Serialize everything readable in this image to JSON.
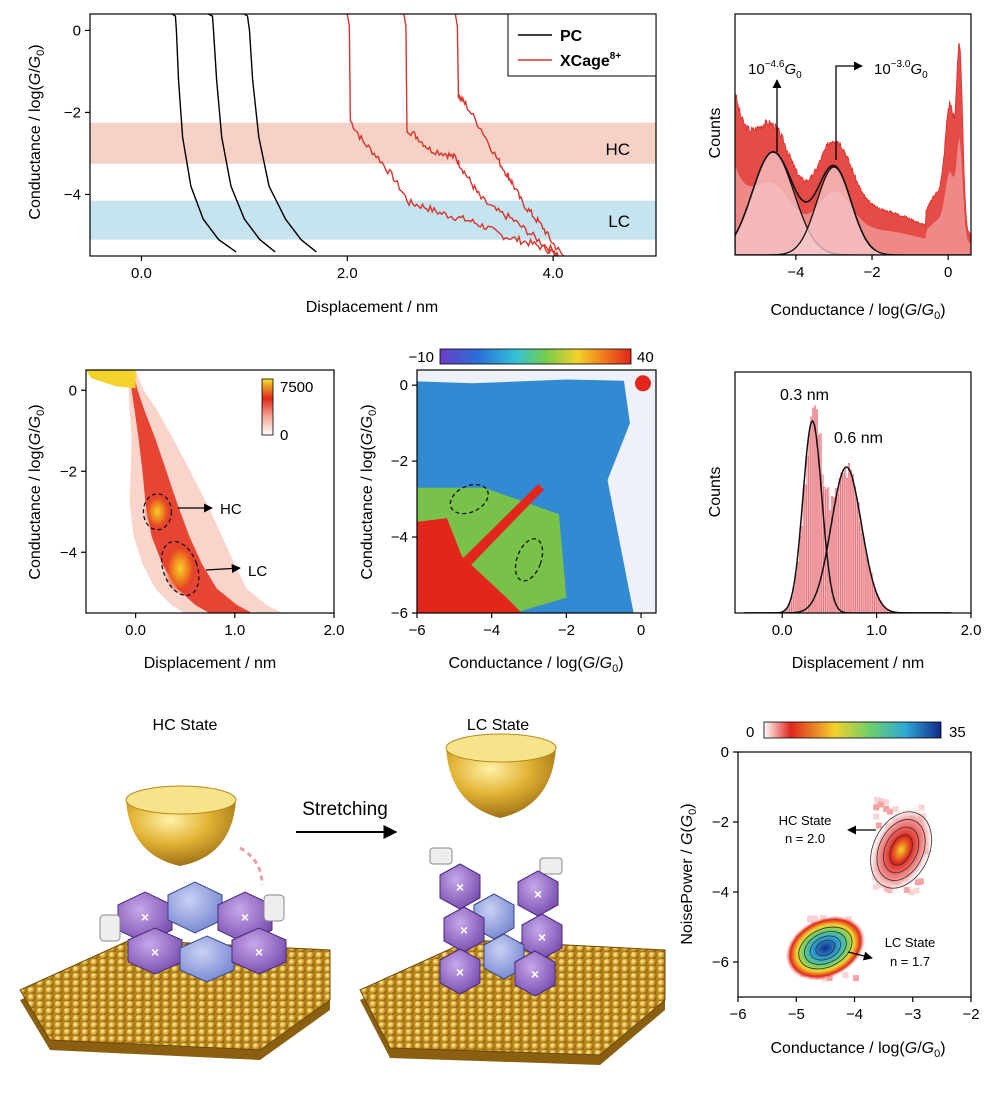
{
  "panel_traces": {
    "xlabel": "Displacement / nm",
    "ylabel_main": "Conductance / log(",
    "ylabel_g": "G",
    "ylabel_slash": "/",
    "ylabel_g0": "G",
    "ylabel_sub": "0",
    "ylabel_close": ")",
    "band_hc_label": "HC",
    "band_lc_label": "LC",
    "legend_pc": "PC",
    "legend_xcage": "XCage",
    "legend_xcage_sup": "8+"
  },
  "panel_hist1": {
    "ylabel": "Counts",
    "xlabel": "Conductance / log(G/G0)",
    "peak1_label_base": "10",
    "peak1_label_exp": "−4.6",
    "peak2_label_base": "10",
    "peak2_label_exp": "−3.0",
    "peak_label_unit": "G",
    "peak_label_sub": "0"
  },
  "panel_2d": {
    "xlabel": "Displacement / nm",
    "colorbar_max": "7500",
    "colorbar_min": "0",
    "hc_label": "HC",
    "lc_label": "LC"
  },
  "panel_corr": {
    "xlabel": "Conductance / log(G/G0)",
    "colorbar_min": "−10",
    "colorbar_max": "40"
  },
  "panel_hist2": {
    "ylabel": "Counts",
    "xlabel": "Displacement / nm",
    "peak1_label": "0.3 nm",
    "peak2_label": "0.6 nm"
  },
  "schematic": {
    "hc_title": "HC State",
    "lc_title": "LC State",
    "arrow_label": "Stretching"
  },
  "panel_noise": {
    "ylabel": "NoisePower / G(G0)",
    "xlabel": "Conductance / log(G/G0)",
    "colorbar_min": "0",
    "colorbar_max": "35",
    "hc_label": "HC State",
    "hc_n": "n = 2.0",
    "lc_label": "LC State",
    "lc_n": "n = 1.7"
  },
  "chart_data": [
    {
      "type": "line",
      "xlabel": "Displacement / nm",
      "ylabel": "Conductance / log(G/G0)",
      "xlim": [
        -0.5,
        5.0
      ],
      "ylim": [
        -5.5,
        0.4
      ],
      "xticks": [
        0.0,
        2.0,
        4.0
      ],
      "yticks": [
        0,
        -2,
        -4
      ],
      "bands": [
        {
          "name": "HC",
          "y": [
            -3.25,
            -2.25
          ],
          "color": "#f6d2c6"
        },
        {
          "name": "LC",
          "y": [
            -5.1,
            -4.15
          ],
          "color": "#c6e3f0"
        }
      ],
      "series": [
        {
          "name": "PC",
          "color": "#000000",
          "traces": [
            {
              "x": [
                0.3,
                0.33,
                0.34,
                0.36,
                0.4,
                0.48,
                0.6,
                0.75,
                0.92
              ],
              "y": [
                0.4,
                0.35,
                0.0,
                -1.2,
                -2.6,
                -3.8,
                -4.6,
                -5.1,
                -5.4
              ]
            },
            {
              "x": [
                0.65,
                0.69,
                0.7,
                0.73,
                0.78,
                0.87,
                1.0,
                1.15,
                1.3
              ],
              "y": [
                0.4,
                0.35,
                0.0,
                -1.2,
                -2.6,
                -3.8,
                -4.6,
                -5.1,
                -5.4
              ]
            },
            {
              "x": [
                1.0,
                1.03,
                1.05,
                1.08,
                1.14,
                1.24,
                1.4,
                1.55,
                1.7
              ],
              "y": [
                0.4,
                0.35,
                0.0,
                -1.2,
                -2.6,
                -3.8,
                -4.6,
                -5.1,
                -5.4
              ]
            }
          ]
        },
        {
          "name": "XCage8+",
          "color": "#d8342b",
          "traces": [
            {
              "x": [
                2.0,
                2.02,
                2.03,
                2.15,
                2.3,
                2.45,
                2.6,
                2.75,
                2.9,
                3.05,
                3.2,
                3.35,
                3.5,
                3.65,
                3.8,
                3.95,
                4.05
              ],
              "y": [
                0.4,
                0.1,
                -2.2,
                -2.7,
                -3.1,
                -3.6,
                -4.2,
                -4.3,
                -4.45,
                -4.55,
                -4.65,
                -4.8,
                -5.0,
                -5.1,
                -5.2,
                -5.35,
                -5.5
              ]
            },
            {
              "x": [
                2.55,
                2.57,
                2.58,
                2.68,
                2.8,
                2.95,
                3.05,
                3.1,
                3.2,
                3.3,
                3.45,
                3.6,
                3.75,
                3.9,
                4.05
              ],
              "y": [
                0.4,
                0.1,
                -2.4,
                -2.6,
                -2.9,
                -3.0,
                -3.1,
                -3.3,
                -3.7,
                -4.1,
                -4.4,
                -4.6,
                -4.9,
                -5.2,
                -5.45
              ]
            },
            {
              "x": [
                3.05,
                3.07,
                3.08,
                3.15,
                3.3,
                3.45,
                3.55,
                3.6,
                3.7,
                3.8,
                3.9,
                4.0,
                4.1
              ],
              "y": [
                0.4,
                0.1,
                -1.6,
                -1.8,
                -2.4,
                -3.1,
                -3.5,
                -3.7,
                -4.2,
                -4.5,
                -4.8,
                -5.2,
                -5.5
              ]
            }
          ]
        }
      ]
    },
    {
      "type": "area",
      "xlabel": "Conductance / log(G/G0)",
      "ylabel": "Counts",
      "xlim": [
        -5.6,
        0.6
      ],
      "xticks": [
        -4,
        -2,
        0
      ],
      "peaks": [
        {
          "center": -4.6,
          "label": "10^-4.6 G0"
        },
        {
          "center": -3.0,
          "label": "10^-3.0 G0"
        }
      ]
    },
    {
      "type": "heatmap",
      "xlabel": "Displacement / nm",
      "ylabel": "Conductance / log(G/G0)",
      "xlim": [
        -0.5,
        2.0
      ],
      "ylim": [
        -5.5,
        0.5
      ],
      "xticks": [
        0.0,
        1.0,
        2.0
      ],
      "yticks": [
        0,
        -2,
        -4
      ],
      "colorbar": [
        0,
        7500
      ],
      "regions": [
        {
          "name": "HC",
          "x": 0.22,
          "y": -3.0
        },
        {
          "name": "LC",
          "x": 0.45,
          "y": -4.4
        }
      ]
    },
    {
      "type": "heatmap",
      "xlabel": "Conductance / log(G/G0)",
      "ylabel": "Conductance / log(G/G0)",
      "xlim": [
        -6,
        0.4
      ],
      "ylim": [
        -6,
        0.4
      ],
      "xticks": [
        -6,
        -4,
        -2,
        0
      ],
      "yticks": [
        0,
        -2,
        -4,
        -6
      ],
      "colorbar": [
        -10,
        40
      ]
    },
    {
      "type": "bar",
      "xlabel": "Displacement / nm",
      "ylabel": "Counts",
      "xlim": [
        -0.5,
        2.0
      ],
      "xticks": [
        0.0,
        1.0,
        2.0
      ],
      "peaks": [
        {
          "center": 0.3,
          "label": "0.3 nm"
        },
        {
          "center": 0.6,
          "label": "0.6 nm"
        }
      ]
    },
    {
      "type": "heatmap",
      "xlabel": "Conductance / log(G/G0)",
      "ylabel": "NoisePower / G(G0)",
      "xlim": [
        -6,
        -2
      ],
      "ylim": [
        -7,
        0
      ],
      "xticks": [
        -6,
        -5,
        -4,
        -3,
        -2
      ],
      "yticks": [
        0,
        -2,
        -4,
        -6
      ],
      "colorbar": [
        0,
        35
      ],
      "clusters": [
        {
          "name": "HC State",
          "x": -3.2,
          "y": -2.8,
          "n": 2.0
        },
        {
          "name": "LC State",
          "x": -4.5,
          "y": -5.6,
          "n": 1.7
        }
      ]
    }
  ]
}
